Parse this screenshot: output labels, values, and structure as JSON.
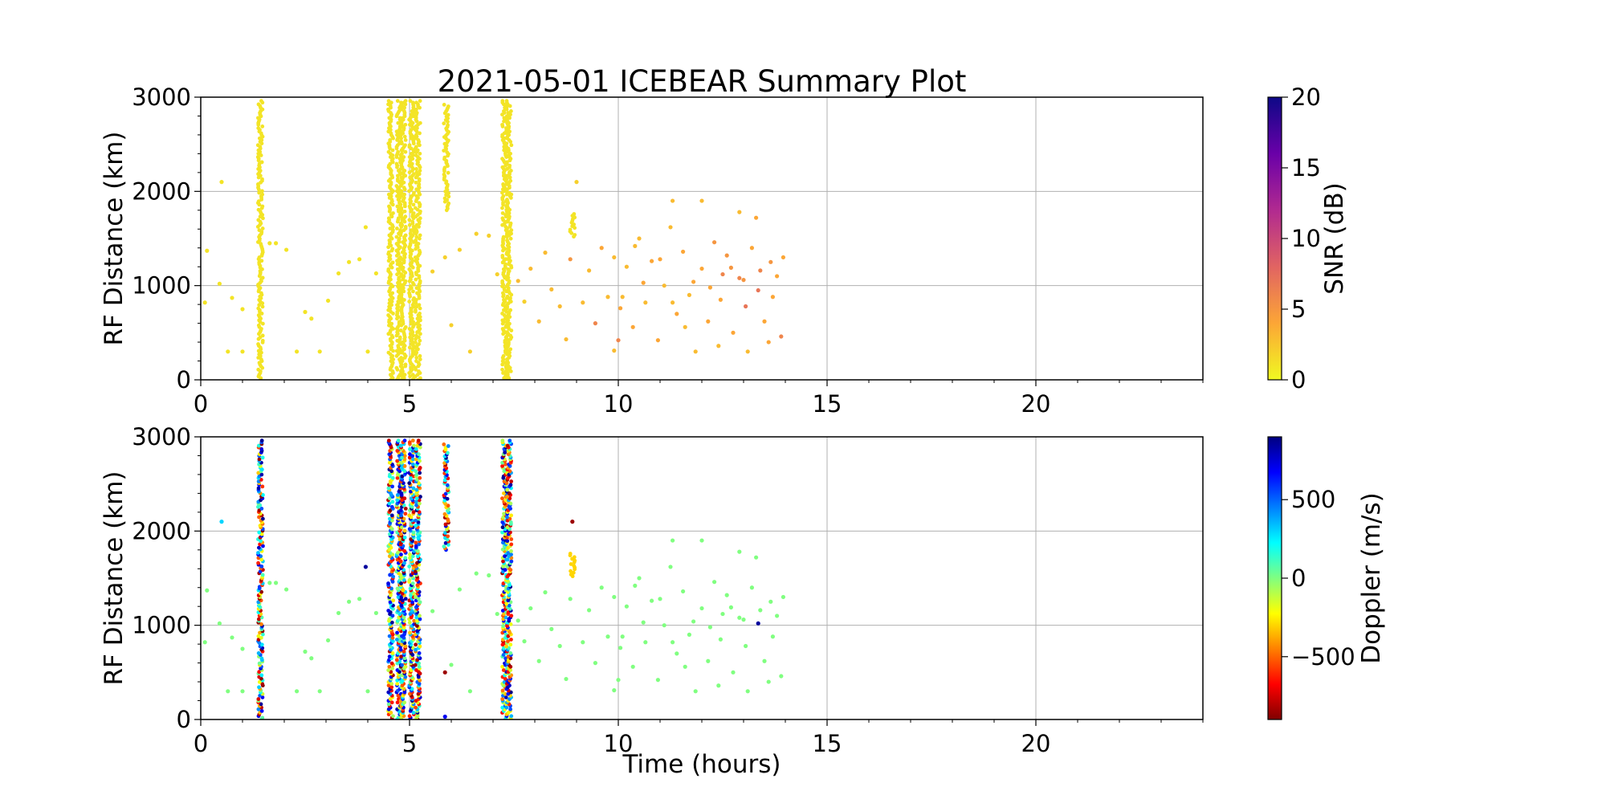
{
  "title": "2021-05-01 ICEBEAR Summary Plot",
  "chart_data": [
    {
      "type": "scatter",
      "panel": "top",
      "ylabel": "RF Distance (km)",
      "xlabel": "",
      "xlim": [
        0,
        24
      ],
      "ylim": [
        0,
        3000
      ],
      "xticks": [
        0,
        5,
        10,
        15,
        20
      ],
      "yticks": [
        0,
        1000,
        2000,
        3000
      ],
      "xtick_labels": [
        "0",
        "5",
        "10",
        "15",
        "20"
      ],
      "ytick_labels": [
        "0",
        "1000",
        "2000",
        "3000"
      ],
      "grid": true,
      "color_by": "SNR (dB)",
      "colorbar": {
        "label": "SNR (dB)",
        "colormap": "plasma_r",
        "range": [
          0,
          20
        ],
        "ticks": [
          0,
          5,
          10,
          15,
          20
        ],
        "tick_labels": [
          "0",
          "5",
          "10",
          "15",
          "20"
        ],
        "stops": [
          "#f0f921",
          "#fca636",
          "#e16462",
          "#b12a90",
          "#6a00a8",
          "#0d0887"
        ]
      },
      "vertical_streaks": [
        {
          "x": 1.43,
          "ymin": 0,
          "ymax": 2960,
          "snr": 1
        },
        {
          "x": 4.55,
          "ymin": 0,
          "ymax": 2960,
          "snr": 1
        },
        {
          "x": 4.75,
          "ymin": 0,
          "ymax": 2960,
          "snr": 1
        },
        {
          "x": 4.85,
          "ymin": 0,
          "ymax": 2960,
          "snr": 1
        },
        {
          "x": 5.05,
          "ymin": 0,
          "ymax": 2960,
          "snr": 1
        },
        {
          "x": 5.2,
          "ymin": 0,
          "ymax": 2960,
          "snr": 1
        },
        {
          "x": 5.88,
          "ymin": 1800,
          "ymax": 2920,
          "snr": 1
        },
        {
          "x": 7.28,
          "ymin": 0,
          "ymax": 2960,
          "snr": 1
        },
        {
          "x": 7.38,
          "ymin": 0,
          "ymax": 2960,
          "snr": 1
        },
        {
          "x": 8.9,
          "ymin": 1520,
          "ymax": 1760,
          "snr": 1
        }
      ],
      "points": [
        [
          0.1,
          820,
          1
        ],
        [
          0.15,
          1370,
          1
        ],
        [
          0.45,
          1020,
          1
        ],
        [
          0.5,
          2100,
          1
        ],
        [
          0.65,
          300,
          1
        ],
        [
          0.75,
          870,
          1
        ],
        [
          1.0,
          300,
          1
        ],
        [
          1.0,
          750,
          1
        ],
        [
          1.65,
          1450,
          1
        ],
        [
          1.8,
          1450,
          1
        ],
        [
          2.05,
          1380,
          1
        ],
        [
          2.3,
          300,
          1
        ],
        [
          2.5,
          720,
          1
        ],
        [
          2.65,
          650,
          1
        ],
        [
          2.85,
          300,
          1
        ],
        [
          3.05,
          840,
          1
        ],
        [
          3.3,
          1130,
          1
        ],
        [
          3.55,
          1250,
          1
        ],
        [
          3.8,
          1280,
          1
        ],
        [
          3.95,
          1620,
          1
        ],
        [
          4.0,
          300,
          1
        ],
        [
          4.2,
          1130,
          1
        ],
        [
          5.55,
          1150,
          2
        ],
        [
          5.85,
          1300,
          2
        ],
        [
          6.0,
          580,
          2
        ],
        [
          6.2,
          1380,
          2
        ],
        [
          6.45,
          300,
          2
        ],
        [
          6.6,
          1550,
          2
        ],
        [
          6.9,
          1530,
          2
        ],
        [
          7.1,
          1120,
          2
        ],
        [
          7.6,
          1050,
          3
        ],
        [
          7.75,
          830,
          2
        ],
        [
          7.9,
          1180,
          3
        ],
        [
          8.1,
          620,
          3
        ],
        [
          8.25,
          1350,
          3
        ],
        [
          8.4,
          960,
          3
        ],
        [
          8.6,
          780,
          3
        ],
        [
          8.75,
          430,
          3
        ],
        [
          8.85,
          1280,
          5
        ],
        [
          9.0,
          2100,
          2
        ],
        [
          9.15,
          820,
          3
        ],
        [
          9.3,
          1160,
          3
        ],
        [
          9.45,
          600,
          6
        ],
        [
          9.6,
          1400,
          4
        ],
        [
          9.75,
          880,
          3
        ],
        [
          9.9,
          310,
          3
        ],
        [
          10.05,
          760,
          4
        ],
        [
          10.2,
          1200,
          3
        ],
        [
          10.35,
          560,
          4
        ],
        [
          10.5,
          1500,
          3
        ],
        [
          10.65,
          820,
          3
        ],
        [
          10.8,
          1260,
          4
        ],
        [
          10.95,
          420,
          4
        ],
        [
          11.1,
          1000,
          3
        ],
        [
          11.25,
          1620,
          3
        ],
        [
          11.4,
          700,
          4
        ],
        [
          11.55,
          1360,
          4
        ],
        [
          11.7,
          900,
          3
        ],
        [
          11.85,
          300,
          3
        ],
        [
          12.0,
          1180,
          4
        ],
        [
          12.15,
          620,
          4
        ],
        [
          12.3,
          1460,
          5
        ],
        [
          12.45,
          850,
          4
        ],
        [
          12.6,
          1320,
          5
        ],
        [
          12.75,
          500,
          4
        ],
        [
          12.9,
          1080,
          6
        ],
        [
          13.05,
          780,
          7
        ],
        [
          13.2,
          1400,
          4
        ],
        [
          13.35,
          950,
          7
        ],
        [
          13.5,
          620,
          4
        ],
        [
          13.65,
          1250,
          5
        ],
        [
          13.8,
          1100,
          4
        ],
        [
          13.9,
          460,
          6
        ],
        [
          13.95,
          1300,
          4
        ],
        [
          10.1,
          880,
          3
        ],
        [
          10.6,
          1030,
          4
        ],
        [
          11.0,
          1280,
          4
        ],
        [
          11.3,
          820,
          3
        ],
        [
          11.8,
          1040,
          4
        ],
        [
          12.2,
          980,
          4
        ],
        [
          12.7,
          1190,
          5
        ],
        [
          13.0,
          1060,
          5
        ],
        [
          13.4,
          1160,
          6
        ],
        [
          13.7,
          880,
          4
        ],
        [
          9.9,
          1300,
          3
        ],
        [
          10.4,
          1420,
          3
        ],
        [
          11.6,
          560,
          3
        ],
        [
          12.4,
          360,
          3
        ],
        [
          13.1,
          300,
          3
        ],
        [
          13.6,
          400,
          4
        ],
        [
          12.9,
          1780,
          3
        ],
        [
          12.0,
          1900,
          3
        ],
        [
          11.3,
          1900,
          3
        ],
        [
          13.3,
          1720,
          4
        ],
        [
          10.0,
          420,
          6
        ],
        [
          12.5,
          1120,
          6
        ]
      ]
    },
    {
      "type": "scatter",
      "panel": "bottom",
      "ylabel": "RF Distance (km)",
      "xlabel": "Time (hours)",
      "xlim": [
        0,
        24
      ],
      "ylim": [
        0,
        3000
      ],
      "xticks": [
        0,
        5,
        10,
        15,
        20
      ],
      "yticks": [
        0,
        1000,
        2000,
        3000
      ],
      "xtick_labels": [
        "0",
        "5",
        "10",
        "15",
        "20"
      ],
      "ytick_labels": [
        "0",
        "1000",
        "2000",
        "3000"
      ],
      "grid": true,
      "color_by": "Doppler (m/s)",
      "colorbar": {
        "label": "Doppler (m/s)",
        "colormap": "jet_r",
        "range": [
          -900,
          900
        ],
        "ticks": [
          -500,
          0,
          500
        ],
        "tick_labels": [
          "−500",
          "0",
          "500"
        ],
        "stops": [
          "#800000",
          "#ff0000",
          "#ff8000",
          "#ffff00",
          "#80ff80",
          "#00ffff",
          "#0080ff",
          "#0000ff",
          "#000080"
        ]
      },
      "vertical_streaks": [
        {
          "x": 1.43,
          "ymin": 0,
          "ymax": 2960,
          "doppler": "mixed"
        },
        {
          "x": 4.55,
          "ymin": 0,
          "ymax": 2960,
          "doppler": "mixed"
        },
        {
          "x": 4.75,
          "ymin": 0,
          "ymax": 2960,
          "doppler": "mixed"
        },
        {
          "x": 4.85,
          "ymin": 0,
          "ymax": 2960,
          "doppler": "mixed"
        },
        {
          "x": 5.05,
          "ymin": 0,
          "ymax": 2960,
          "doppler": "mixed"
        },
        {
          "x": 5.2,
          "ymin": 0,
          "ymax": 2960,
          "doppler": "mixed"
        },
        {
          "x": 5.88,
          "ymin": 1800,
          "ymax": 2920,
          "doppler": "mixed"
        },
        {
          "x": 7.28,
          "ymin": 0,
          "ymax": 2960,
          "doppler": "mixed"
        },
        {
          "x": 7.38,
          "ymin": 0,
          "ymax": 2960,
          "doppler": "mixed"
        },
        {
          "x": 8.9,
          "ymin": 1520,
          "ymax": 1760,
          "doppler": -300
        }
      ],
      "points": [
        [
          0.1,
          820,
          0
        ],
        [
          0.15,
          1370,
          0
        ],
        [
          0.45,
          1020,
          0
        ],
        [
          0.5,
          2100,
          300
        ],
        [
          0.65,
          300,
          0
        ],
        [
          0.75,
          870,
          0
        ],
        [
          1.0,
          300,
          0
        ],
        [
          1.0,
          750,
          0
        ],
        [
          1.65,
          1450,
          0
        ],
        [
          1.8,
          1450,
          0
        ],
        [
          2.05,
          1380,
          0
        ],
        [
          2.3,
          300,
          0
        ],
        [
          2.5,
          720,
          0
        ],
        [
          2.65,
          650,
          0
        ],
        [
          2.85,
          300,
          0
        ],
        [
          3.05,
          840,
          0
        ],
        [
          3.3,
          1130,
          0
        ],
        [
          3.55,
          1250,
          0
        ],
        [
          3.8,
          1280,
          0
        ],
        [
          3.95,
          1620,
          850
        ],
        [
          4.0,
          300,
          0
        ],
        [
          4.2,
          1130,
          0
        ],
        [
          5.55,
          1150,
          0
        ],
        [
          5.85,
          500,
          -850
        ],
        [
          5.85,
          30,
          700
        ],
        [
          6.0,
          580,
          0
        ],
        [
          6.2,
          1380,
          0
        ],
        [
          6.45,
          300,
          0
        ],
        [
          6.6,
          1550,
          0
        ],
        [
          6.9,
          1530,
          0
        ],
        [
          7.1,
          1120,
          0
        ],
        [
          7.6,
          1050,
          0
        ],
        [
          7.75,
          830,
          0
        ],
        [
          7.9,
          1180,
          0
        ],
        [
          8.1,
          620,
          0
        ],
        [
          8.25,
          1350,
          0
        ],
        [
          8.4,
          960,
          0
        ],
        [
          8.6,
          780,
          0
        ],
        [
          8.75,
          430,
          0
        ],
        [
          8.85,
          1280,
          0
        ],
        [
          8.9,
          2100,
          -850
        ],
        [
          9.15,
          820,
          0
        ],
        [
          9.3,
          1160,
          0
        ],
        [
          9.45,
          600,
          0
        ],
        [
          9.6,
          1400,
          0
        ],
        [
          9.75,
          880,
          0
        ],
        [
          9.9,
          310,
          0
        ],
        [
          10.05,
          760,
          0
        ],
        [
          10.2,
          1200,
          0
        ],
        [
          10.35,
          560,
          0
        ],
        [
          10.5,
          1500,
          0
        ],
        [
          10.65,
          820,
          0
        ],
        [
          10.8,
          1260,
          0
        ],
        [
          10.95,
          420,
          0
        ],
        [
          11.1,
          1000,
          0
        ],
        [
          11.25,
          1620,
          0
        ],
        [
          11.4,
          700,
          0
        ],
        [
          11.55,
          1360,
          0
        ],
        [
          11.7,
          900,
          0
        ],
        [
          11.85,
          300,
          0
        ],
        [
          12.0,
          1180,
          0
        ],
        [
          12.15,
          620,
          0
        ],
        [
          12.3,
          1460,
          0
        ],
        [
          12.45,
          850,
          0
        ],
        [
          12.6,
          1320,
          0
        ],
        [
          12.75,
          500,
          0
        ],
        [
          12.9,
          1080,
          0
        ],
        [
          13.05,
          780,
          0
        ],
        [
          13.2,
          1400,
          0
        ],
        [
          13.35,
          1020,
          850
        ],
        [
          13.5,
          620,
          0
        ],
        [
          13.65,
          1250,
          0
        ],
        [
          13.8,
          1100,
          0
        ],
        [
          13.9,
          460,
          0
        ],
        [
          13.95,
          1300,
          0
        ],
        [
          10.1,
          880,
          0
        ],
        [
          10.6,
          1030,
          0
        ],
        [
          11.0,
          1280,
          0
        ],
        [
          11.3,
          820,
          0
        ],
        [
          11.8,
          1040,
          0
        ],
        [
          12.2,
          980,
          0
        ],
        [
          12.7,
          1190,
          0
        ],
        [
          13.0,
          1060,
          0
        ],
        [
          13.4,
          1160,
          0
        ],
        [
          13.7,
          880,
          0
        ],
        [
          9.9,
          1300,
          0
        ],
        [
          10.4,
          1420,
          0
        ],
        [
          11.6,
          560,
          0
        ],
        [
          12.4,
          360,
          0
        ],
        [
          13.1,
          300,
          0
        ],
        [
          13.6,
          400,
          0
        ],
        [
          12.9,
          1780,
          0
        ],
        [
          12.0,
          1900,
          0
        ],
        [
          11.3,
          1900,
          0
        ],
        [
          13.3,
          1720,
          0
        ],
        [
          10.0,
          420,
          0
        ],
        [
          12.5,
          1120,
          0
        ]
      ]
    }
  ]
}
